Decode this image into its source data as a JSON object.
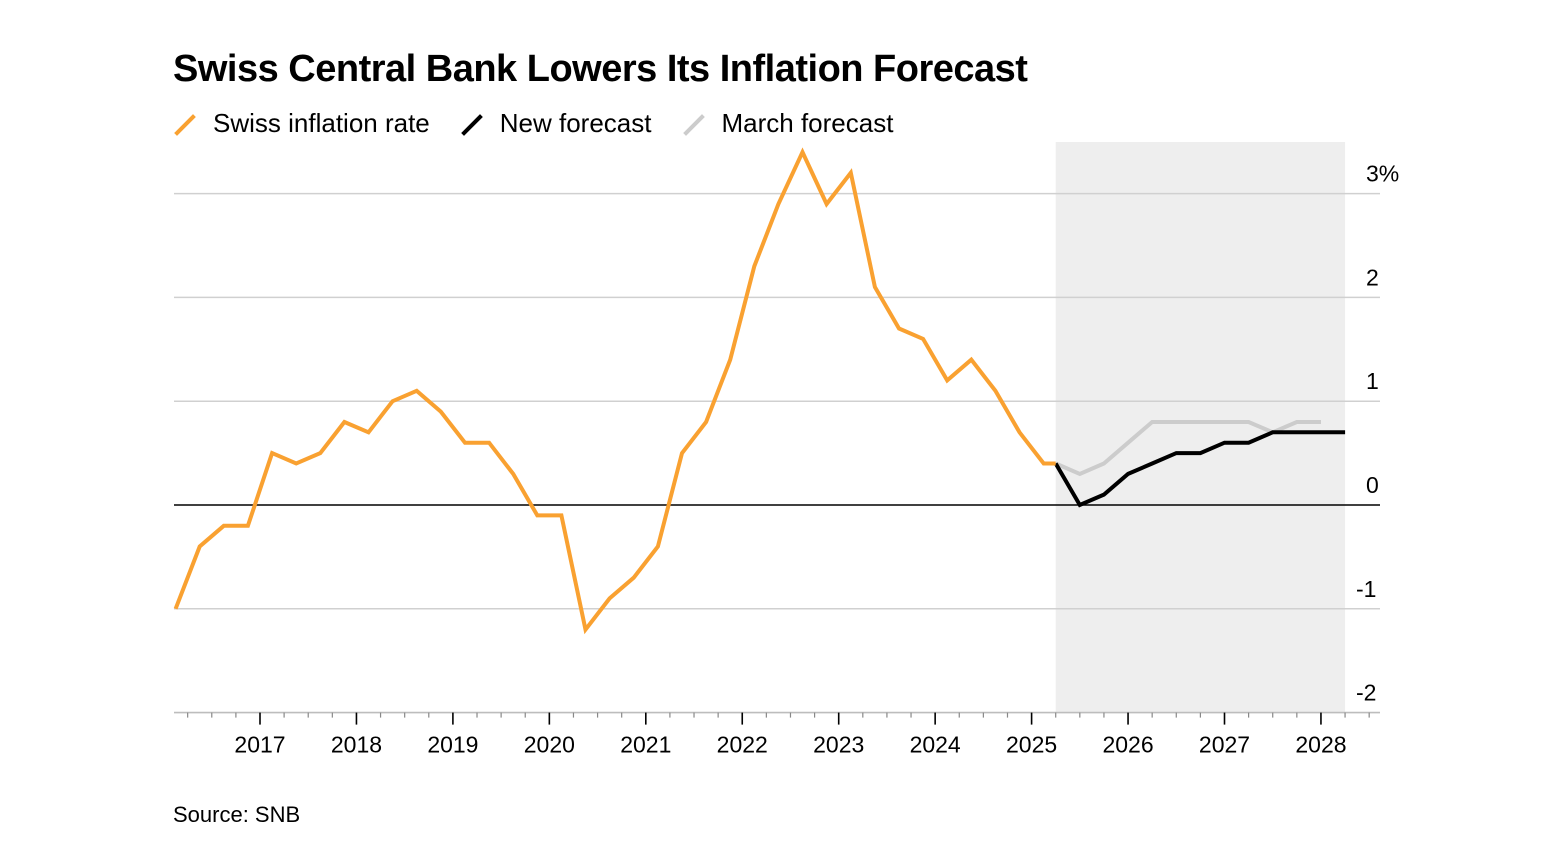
{
  "title": "Swiss Central Bank Lowers Its Inflation Forecast",
  "source": "Source: SNB",
  "legend": [
    {
      "label": "Swiss inflation rate",
      "color": "#f9a131"
    },
    {
      "label": "New forecast",
      "color": "#000000"
    },
    {
      "label": "March forecast",
      "color": "#cccccc"
    }
  ],
  "chart_data": {
    "type": "line",
    "title": "Swiss Central Bank Lowers Its Inflation Forecast",
    "xlabel": "",
    "ylabel": "",
    "xlim": [
      2016.25,
      2028.5
    ],
    "ylim": [
      -2,
      3.25
    ],
    "x_ticks": [
      2017,
      2018,
      2019,
      2020,
      2021,
      2022,
      2023,
      2024,
      2025,
      2026,
      2027,
      2028
    ],
    "x_tick_labels": [
      "2017",
      "2018",
      "2019",
      "2020",
      "2021",
      "2022",
      "2023",
      "2024",
      "2025",
      "2026",
      "2027",
      "2028"
    ],
    "y_ticks": [
      -2,
      -1,
      0,
      1,
      2,
      3
    ],
    "y_tick_labels": [
      "-2",
      "-1",
      "0",
      "1",
      "2",
      "3%"
    ],
    "grid": "horizontal",
    "legend_position": "top-left",
    "forecast_shading": {
      "x_range": [
        2025.25,
        2028.25
      ],
      "color": "#eeeeee"
    },
    "series": [
      {
        "name": "Swiss inflation rate",
        "color": "#f9a131",
        "x": [
          2016.125,
          2016.375,
          2016.625,
          2016.875,
          2017.125,
          2017.375,
          2017.625,
          2017.875,
          2018.125,
          2018.375,
          2018.625,
          2018.875,
          2019.125,
          2019.375,
          2019.625,
          2019.875,
          2020.125,
          2020.375,
          2020.625,
          2020.875,
          2021.125,
          2021.375,
          2021.625,
          2021.875,
          2022.125,
          2022.375,
          2022.625,
          2022.875,
          2023.125,
          2023.375,
          2023.625,
          2023.875,
          2024.125,
          2024.375,
          2024.625,
          2024.875,
          2025.125,
          2025.25
        ],
        "y": [
          -1.0,
          -0.4,
          -0.2,
          -0.2,
          0.5,
          0.4,
          0.5,
          0.8,
          0.7,
          1.0,
          1.1,
          0.9,
          0.6,
          0.6,
          0.3,
          -0.1,
          -0.1,
          -1.2,
          -0.9,
          -0.7,
          -0.4,
          0.5,
          0.8,
          1.4,
          2.3,
          2.9,
          3.4,
          2.9,
          3.2,
          2.1,
          1.7,
          1.6,
          1.2,
          1.4,
          1.1,
          0.7,
          0.4,
          0.4
        ]
      },
      {
        "name": "New forecast",
        "color": "#000000",
        "x": [
          2025.25,
          2025.5,
          2025.75,
          2026.0,
          2026.25,
          2026.5,
          2026.75,
          2027.0,
          2027.25,
          2027.5,
          2027.75,
          2028.0,
          2028.25
        ],
        "y": [
          0.4,
          0.0,
          0.1,
          0.3,
          0.4,
          0.5,
          0.5,
          0.6,
          0.6,
          0.7,
          0.7,
          0.7,
          0.7
        ]
      },
      {
        "name": "March forecast",
        "color": "#cccccc",
        "x": [
          2025.25,
          2025.5,
          2025.75,
          2026.0,
          2026.25,
          2026.5,
          2026.75,
          2027.0,
          2027.25,
          2027.5,
          2027.75,
          2028.0
        ],
        "y": [
          0.4,
          0.3,
          0.4,
          0.6,
          0.8,
          0.8,
          0.8,
          0.8,
          0.8,
          0.7,
          0.8,
          0.8
        ]
      }
    ]
  }
}
